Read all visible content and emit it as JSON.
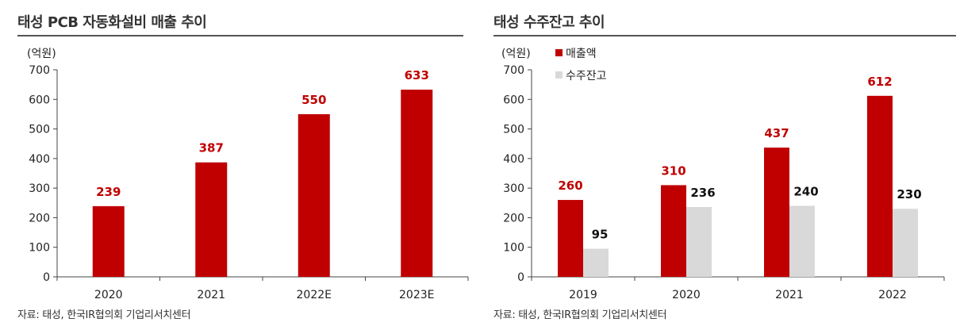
{
  "colors": {
    "primary": "#C00000",
    "secondary": "#D9D9D9",
    "label_primary": "#C00000",
    "label_secondary": "#111111"
  },
  "chart_data": [
    {
      "type": "bar",
      "title": "태성 PCB 자동화설비 매출 추이",
      "unit_label": "(억원)",
      "categories": [
        "2020",
        "2021",
        "2022E",
        "2023E"
      ],
      "series": [
        {
          "name": "매출액",
          "values": [
            239,
            387,
            550,
            633
          ]
        }
      ],
      "yticks": [
        0,
        100,
        200,
        300,
        400,
        500,
        600,
        700
      ],
      "ylim": [
        0,
        700
      ],
      "source": "자료: 태성, 한국IR협의회 기업리서치센터"
    },
    {
      "type": "bar",
      "title": "태성 수주잔고 추이",
      "unit_label": "(억원)",
      "categories": [
        "2019",
        "2020",
        "2021",
        "2022"
      ],
      "series": [
        {
          "name": "매출액",
          "values": [
            260,
            310,
            437,
            612
          ]
        },
        {
          "name": "수주잔고",
          "values": [
            95,
            236,
            240,
            230
          ]
        }
      ],
      "yticks": [
        0,
        100,
        200,
        300,
        400,
        500,
        600,
        700
      ],
      "ylim": [
        0,
        700
      ],
      "legend_position": "top-left",
      "source": "자료: 태성, 한국IR협의회 기업리서치센터"
    }
  ]
}
